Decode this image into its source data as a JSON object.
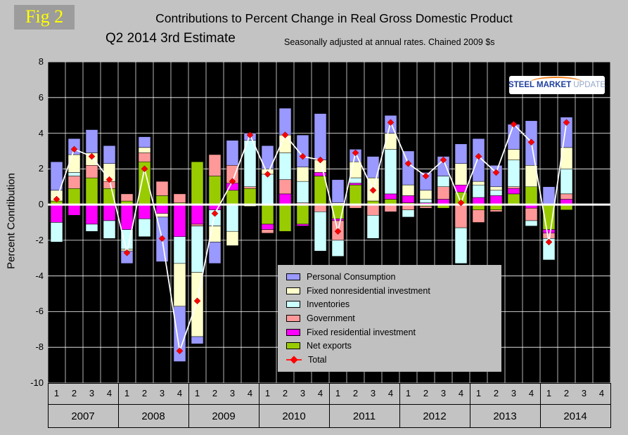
{
  "page": {
    "fig_label": "Fig 2",
    "background_color": "#c3c3c3",
    "plot_background": "#000000"
  },
  "header": {
    "title": "Contributions to Percent Change in Real Gross Domestic Product",
    "subtitle": "Q2 2014 3rd Estimate",
    "note": "Seasonally adjusted at annual rates. Chained 2009 $s"
  },
  "logo": {
    "part1": "STEEL",
    "part2": "MARKET",
    "part3": "UPDATE",
    "arc_color": "#f5821f",
    "text_color": "#1e3f9e",
    "muted_color": "#93a6c9"
  },
  "chart_data": {
    "type": "bar",
    "subtype": "stacked-bar-with-total-line",
    "title": "Contributions to Percent Change in Real Gross Domestic Product",
    "subtitle": "Q2 2014 3rd Estimate",
    "note": "Seasonally adjusted at annual rates. Chained 2009 $s",
    "ylabel": "Percent Conrtibution",
    "ylim": [
      -10,
      8
    ],
    "yticks": [
      8,
      6,
      4,
      2,
      0,
      -2,
      -4,
      -6,
      -8,
      -10
    ],
    "grid": true,
    "grid_color": "#ffffff",
    "zero_line_color": "#ffffff",
    "plot_bg": "#000000",
    "legend_position": "inside-bottom-center",
    "years": [
      "2007",
      "2008",
      "2009",
      "2010",
      "2011",
      "2012",
      "2013",
      "2014"
    ],
    "quarter_labels": [
      "1",
      "2",
      "3",
      "4"
    ],
    "x": [
      "2007Q1",
      "2007Q2",
      "2007Q3",
      "2007Q4",
      "2008Q1",
      "2008Q2",
      "2008Q3",
      "2008Q4",
      "2009Q1",
      "2009Q2",
      "2009Q3",
      "2009Q4",
      "2010Q1",
      "2010Q2",
      "2010Q3",
      "2010Q4",
      "2011Q1",
      "2011Q2",
      "2011Q3",
      "2011Q4",
      "2012Q1",
      "2012Q2",
      "2012Q3",
      "2012Q4",
      "2013Q1",
      "2013Q2",
      "2013Q3",
      "2013Q4",
      "2014Q1",
      "2014Q2"
    ],
    "series": [
      {
        "name": "Personal Consumption",
        "color": "#9999ff",
        "values": [
          1.6,
          0.9,
          1.3,
          1.0,
          -0.7,
          0.6,
          -2.5,
          -3.1,
          -0.4,
          -1.2,
          1.4,
          0.4,
          1.3,
          1.5,
          1.8,
          2.6,
          1.3,
          0.7,
          1.2,
          1.0,
          1.9,
          1.0,
          1.1,
          1.1,
          2.4,
          1.2,
          1.4,
          2.5,
          1.0,
          1.7
        ]
      },
      {
        "name": "Fixed nonresidential investment",
        "color": "#ffffcc",
        "values": [
          0.6,
          1.0,
          0.7,
          1.0,
          -0.1,
          0.3,
          -0.2,
          -2.4,
          -3.6,
          -0.9,
          -0.8,
          -0.1,
          0.3,
          1.0,
          0.8,
          0.7,
          0.1,
          0.9,
          1.3,
          0.9,
          0.6,
          0.5,
          0.0,
          1.2,
          0.2,
          0.2,
          0.6,
          1.2,
          0.0,
          1.2
        ]
      },
      {
        "name": "Inventories",
        "color": "#ccffff",
        "values": [
          -1.1,
          0.2,
          -0.4,
          -1.0,
          -1.1,
          -1.0,
          0.0,
          -1.5,
          -2.6,
          -0.9,
          -1.5,
          2.6,
          1.7,
          1.5,
          1.2,
          -2.2,
          -0.9,
          0.3,
          -1.3,
          2.5,
          -0.4,
          0.2,
          0.6,
          -2.0,
          0.7,
          0.3,
          1.5,
          -0.3,
          -1.2,
          1.4
        ]
      },
      {
        "name": "Government",
        "color": "#ff9999",
        "values": [
          0.0,
          0.7,
          0.7,
          0.4,
          0.4,
          0.5,
          0.8,
          0.5,
          -0.1,
          1.2,
          1.0,
          0.1,
          -0.2,
          0.8,
          0.1,
          -0.4,
          -1.1,
          -0.2,
          -0.6,
          -0.4,
          -0.3,
          -0.1,
          0.7,
          -1.3,
          -0.7,
          -0.1,
          0.1,
          -0.7,
          -0.3,
          0.3
        ]
      },
      {
        "name": "Fixed residential investment",
        "color": "#ff00ff",
        "values": [
          -1.0,
          -0.6,
          -1.1,
          -0.9,
          -1.4,
          -0.8,
          -0.5,
          -1.8,
          -1.1,
          -0.3,
          0.4,
          0.0,
          -0.3,
          0.6,
          -0.1,
          0.2,
          -0.1,
          0.1,
          0.0,
          0.3,
          0.4,
          0.1,
          0.3,
          0.4,
          0.4,
          0.5,
          0.3,
          -0.2,
          -0.2,
          0.3
        ]
      },
      {
        "name": "Net exports",
        "color": "#99cc00",
        "values": [
          0.2,
          0.9,
          1.5,
          0.9,
          0.2,
          2.4,
          0.5,
          0.1,
          2.4,
          1.6,
          0.8,
          0.9,
          -1.1,
          -1.5,
          -1.1,
          1.6,
          -0.8,
          1.1,
          0.2,
          0.3,
          0.1,
          -0.1,
          -0.2,
          0.7,
          -0.3,
          -0.3,
          0.6,
          1.0,
          -1.4,
          -0.3
        ]
      }
    ],
    "stack_order_bottom_to_top": [
      "Net exports",
      "Fixed residential investment",
      "Government",
      "Inventories",
      "Fixed nonresidential investment",
      "Personal Consumption"
    ],
    "total": {
      "name": "Total",
      "marker_color": "#ff0000",
      "line_color": "#ffffff",
      "values": [
        0.3,
        3.1,
        2.7,
        1.4,
        -2.7,
        2.0,
        -1.9,
        -8.2,
        -5.4,
        -0.5,
        1.3,
        3.9,
        1.7,
        3.9,
        2.7,
        2.5,
        -1.5,
        2.9,
        0.8,
        4.6,
        2.3,
        1.6,
        2.5,
        0.1,
        2.7,
        1.8,
        4.5,
        3.5,
        -2.1,
        4.6
      ]
    }
  }
}
